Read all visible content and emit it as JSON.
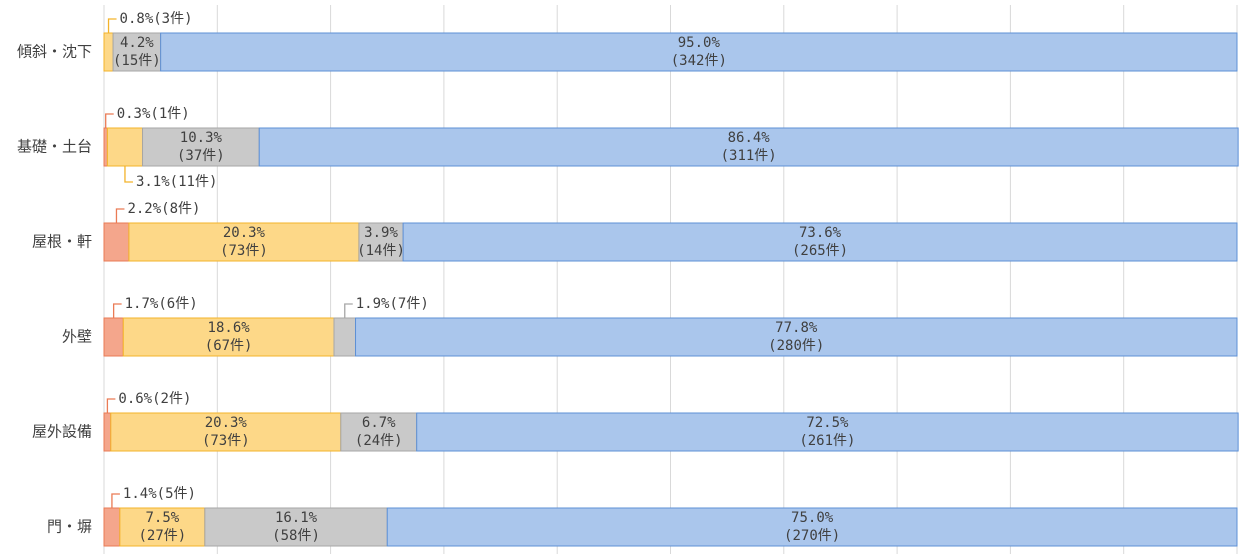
{
  "chart_data": {
    "type": "stacked_bar_horizontal_100",
    "categories": [
      "傾斜・沈下",
      "基礎・土台",
      "屋根・軒",
      "外壁",
      "屋外設備",
      "門・塀"
    ],
    "series": [
      {
        "color": "#f4a68c",
        "border": "#ea7b55",
        "values": [
          null,
          0.3,
          2.2,
          1.7,
          0.6,
          1.4
        ],
        "value_labels": [
          null,
          "0.3%",
          "2.2%",
          "1.7%",
          "0.6%",
          "1.4%"
        ],
        "count_labels": [
          null,
          "(1件)",
          "(8件)",
          "(6件)",
          "(2件)",
          "(5件)"
        ]
      },
      {
        "color": "#fdd888",
        "border": "#f3b32a",
        "values": [
          0.8,
          3.1,
          20.3,
          18.6,
          20.3,
          7.5
        ],
        "value_labels": [
          "0.8%",
          "3.1%",
          "20.3%",
          "18.6%",
          "20.3%",
          "7.5%"
        ],
        "count_labels": [
          "(3件)",
          "(11件)",
          "(73件)",
          "(67件)",
          "(73件)",
          "(27件)"
        ]
      },
      {
        "color": "#c9c9c9",
        "border": "#a6a6a6",
        "values": [
          4.2,
          10.3,
          3.9,
          1.9,
          6.7,
          16.1
        ],
        "value_labels": [
          "4.2%",
          "10.3%",
          "3.9%",
          "1.9%",
          "6.7%",
          "16.1%"
        ],
        "count_labels": [
          "(15件)",
          "(37件)",
          "(14件)",
          "(7件)",
          "(24件)",
          "(58件)"
        ]
      },
      {
        "color": "#aac6ec",
        "border": "#5d90d6",
        "values": [
          95.0,
          86.4,
          73.6,
          77.8,
          72.5,
          75.0
        ],
        "value_labels": [
          "95.0%",
          "86.4%",
          "73.6%",
          "77.8%",
          "72.5%",
          "75.0%"
        ],
        "count_labels": [
          "(342件)",
          "(311件)",
          "(265件)",
          "(280件)",
          "(261件)",
          "(270件)"
        ]
      }
    ],
    "xlim": [
      0,
      100
    ],
    "xticks": [
      0,
      10,
      20,
      30,
      40,
      50,
      60,
      70,
      80,
      90,
      100
    ],
    "grid": true
  }
}
